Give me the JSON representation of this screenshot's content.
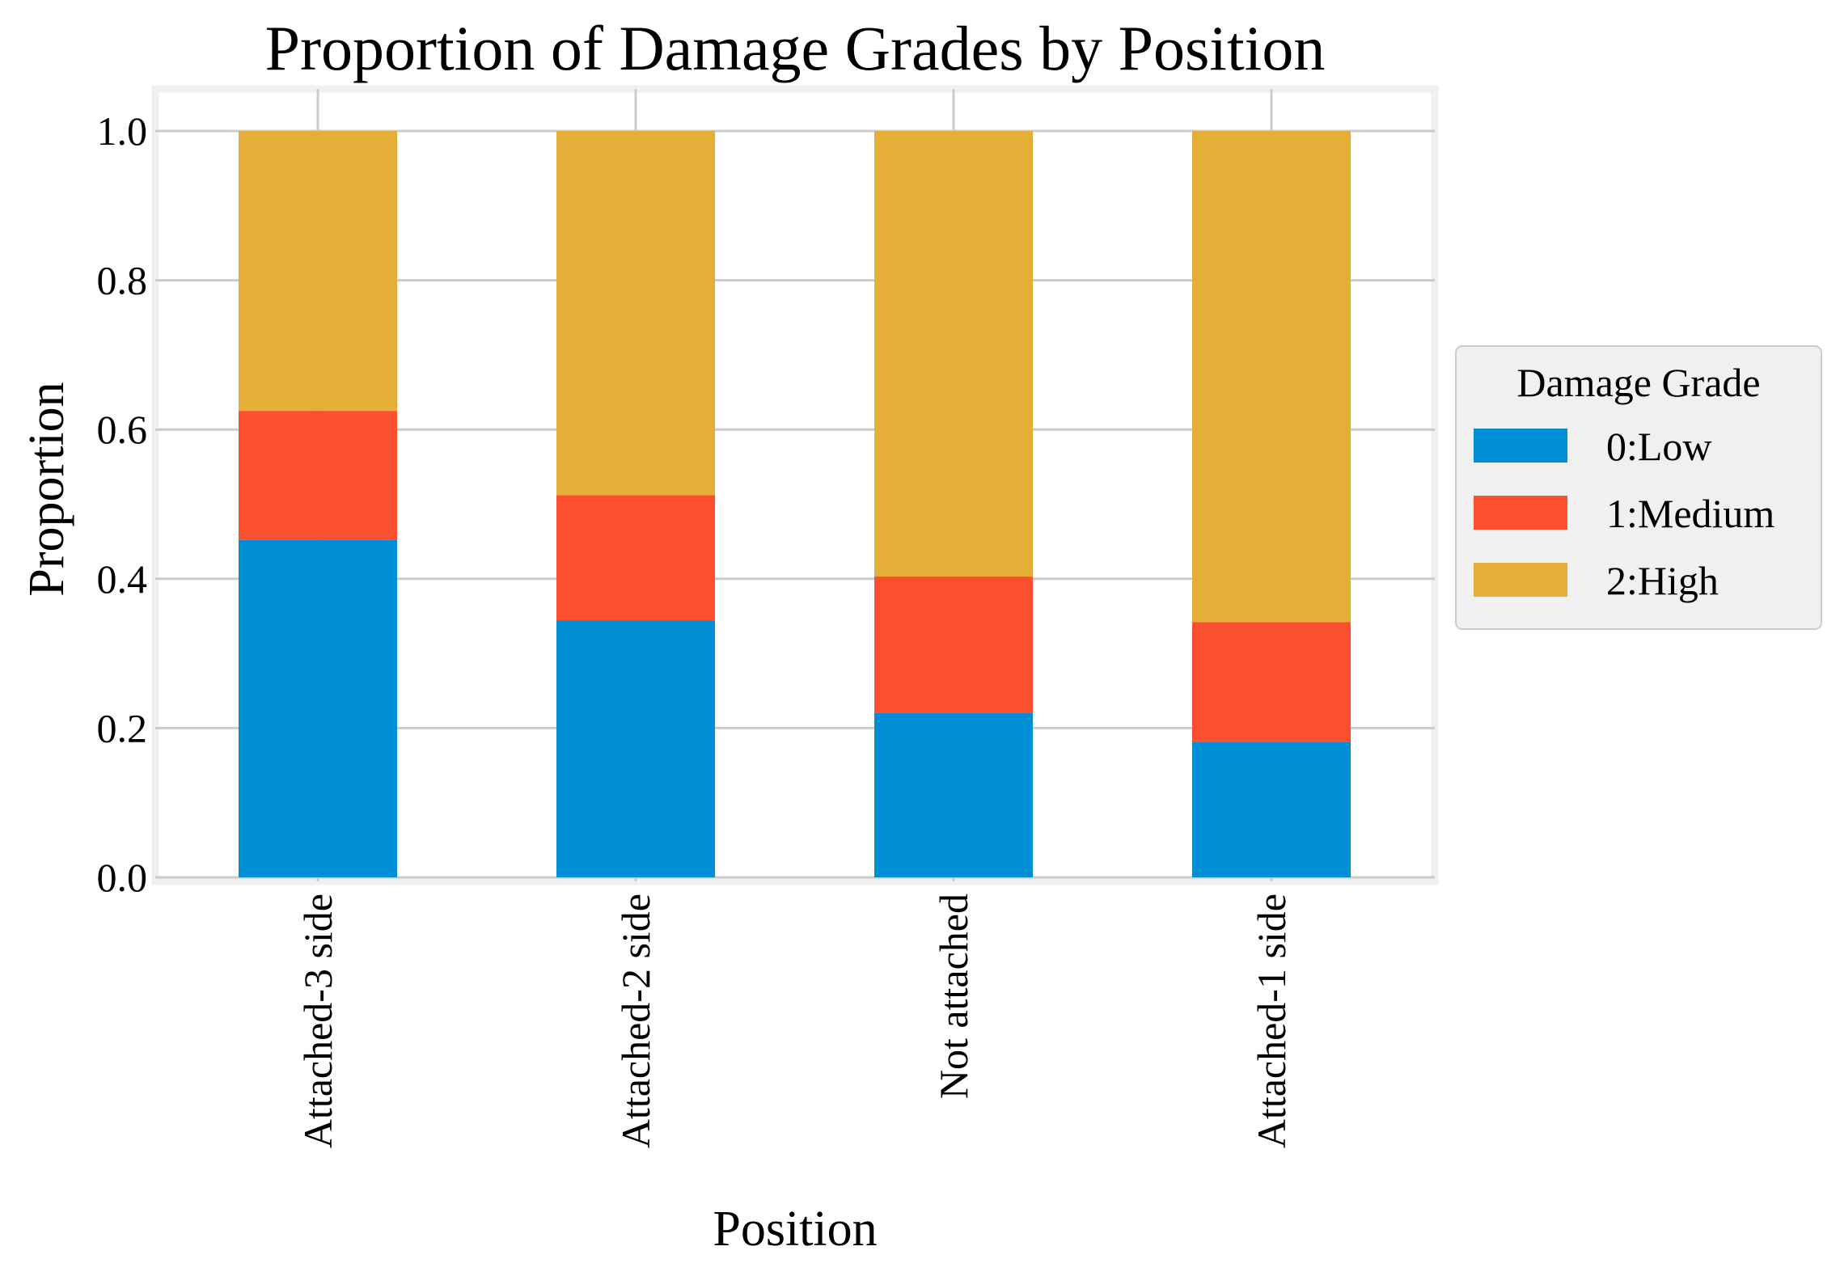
{
  "chart_data": {
    "type": "bar",
    "stacked": true,
    "title": "Proportion of Damage Grades by Position",
    "xlabel": "Position",
    "ylabel": "Proportion",
    "categories": [
      "Attached-3 side",
      "Attached-2 side",
      "Not attached",
      "Attached-1 side"
    ],
    "ylim": [
      0,
      1.05
    ],
    "yticks": [
      "0.0",
      "0.2",
      "0.4",
      "0.6",
      "0.8",
      "1.0"
    ],
    "grid": true,
    "legend": {
      "title": "Damage Grade",
      "placement": "center-right outside"
    },
    "series": [
      {
        "name": "0:Low",
        "color": "#008fd5",
        "values": [
          0.452,
          0.344,
          0.22,
          0.181
        ]
      },
      {
        "name": "1:Medium",
        "color": "#fc4f30",
        "values": [
          0.173,
          0.168,
          0.183,
          0.161
        ]
      },
      {
        "name": "2:High",
        "color": "#e5ae38",
        "values": [
          0.375,
          0.488,
          0.597,
          0.658
        ]
      }
    ]
  }
}
